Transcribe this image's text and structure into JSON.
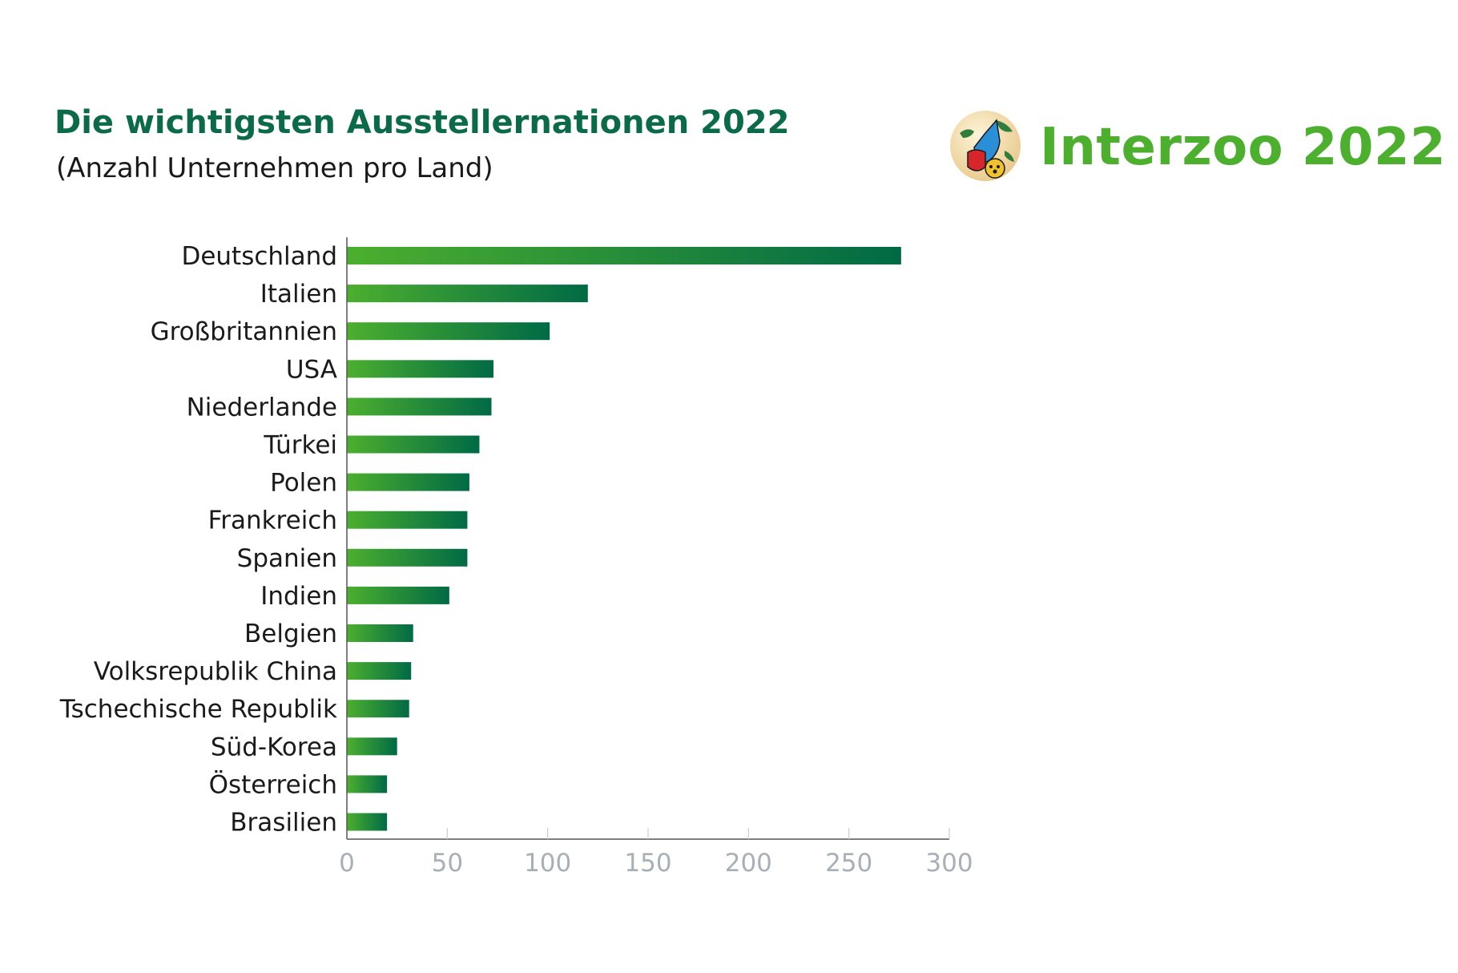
{
  "header": {
    "title": "Die wichtigsten Ausstellernationen 2022",
    "subtitle": "(Anzahl Unternehmen pro Land)"
  },
  "logo": {
    "text": "Interzoo 2022",
    "icon": "globe-bird-bear-icon",
    "color": "#4caf2e"
  },
  "colors": {
    "title": "#0b6b48",
    "bar_start": "#4caf2e",
    "bar_end": "#006a45",
    "axis": "#555555",
    "tick_text": "#a7b0b6"
  },
  "chart_data": {
    "type": "bar",
    "orientation": "horizontal",
    "categories": [
      "Deutschland",
      "Italien",
      "Großbritannien",
      "USA",
      "Niederlande",
      "Türkei",
      "Polen",
      "Frankreich",
      "Spanien",
      "Indien",
      "Belgien",
      "Volksrepublik China",
      "Tschechische Republik",
      "Süd-Korea",
      "Österreich",
      "Brasilien"
    ],
    "values": [
      276,
      120,
      101,
      73,
      72,
      66,
      61,
      60,
      60,
      51,
      33,
      32,
      31,
      25,
      20,
      20
    ],
    "xlim": [
      0,
      300
    ],
    "xticks": [
      0,
      50,
      100,
      150,
      200,
      250,
      300
    ],
    "grid": false,
    "legend": "none"
  }
}
